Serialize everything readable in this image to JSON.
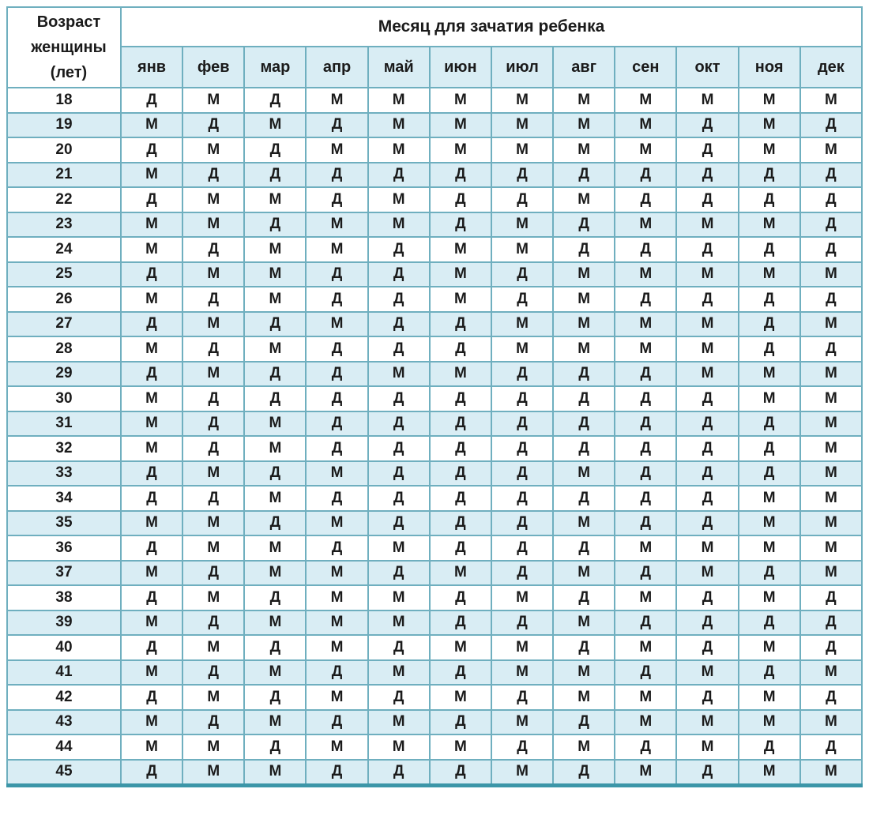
{
  "chart_data": {
    "type": "table",
    "title": "Месяц для зачатия ребенка",
    "age_column_label": "Возраст женщины (лет)",
    "months": [
      "янв",
      "фев",
      "мар",
      "апр",
      "май",
      "июн",
      "июл",
      "авг",
      "сен",
      "окт",
      "ноя",
      "дек"
    ],
    "rows": [
      {
        "age": "18",
        "values": [
          "Д",
          "М",
          "Д",
          "М",
          "М",
          "М",
          "М",
          "М",
          "М",
          "М",
          "М",
          "М"
        ]
      },
      {
        "age": "19",
        "values": [
          "М",
          "Д",
          "М",
          "Д",
          "М",
          "М",
          "М",
          "М",
          "М",
          "Д",
          "М",
          "Д"
        ]
      },
      {
        "age": "20",
        "values": [
          "Д",
          "М",
          "Д",
          "М",
          "М",
          "М",
          "М",
          "М",
          "М",
          "Д",
          "М",
          "М"
        ]
      },
      {
        "age": "21",
        "values": [
          "М",
          "Д",
          "Д",
          "Д",
          "Д",
          "Д",
          "Д",
          "Д",
          "Д",
          "Д",
          "Д",
          "Д"
        ]
      },
      {
        "age": "22",
        "values": [
          "Д",
          "М",
          "М",
          "Д",
          "М",
          "Д",
          "Д",
          "М",
          "Д",
          "Д",
          "Д",
          "Д"
        ]
      },
      {
        "age": "23",
        "values": [
          "М",
          "М",
          "Д",
          "М",
          "М",
          "Д",
          "М",
          "Д",
          "М",
          "М",
          "М",
          "Д"
        ]
      },
      {
        "age": "24",
        "values": [
          "М",
          "Д",
          "М",
          "М",
          "Д",
          "М",
          "М",
          "Д",
          "Д",
          "Д",
          "Д",
          "Д"
        ]
      },
      {
        "age": "25",
        "values": [
          "Д",
          "М",
          "М",
          "Д",
          "Д",
          "М",
          "Д",
          "М",
          "М",
          "М",
          "М",
          "М"
        ]
      },
      {
        "age": "26",
        "values": [
          "М",
          "Д",
          "М",
          "Д",
          "Д",
          "М",
          "Д",
          "М",
          "Д",
          "Д",
          "Д",
          "Д"
        ]
      },
      {
        "age": "27",
        "values": [
          "Д",
          "М",
          "Д",
          "М",
          "Д",
          "Д",
          "М",
          "М",
          "М",
          "М",
          "Д",
          "М"
        ]
      },
      {
        "age": "28",
        "values": [
          "М",
          "Д",
          "М",
          "Д",
          "Д",
          "Д",
          "М",
          "М",
          "М",
          "М",
          "Д",
          "Д"
        ]
      },
      {
        "age": "29",
        "values": [
          "Д",
          "М",
          "Д",
          "Д",
          "М",
          "М",
          "Д",
          "Д",
          "Д",
          "М",
          "М",
          "М"
        ]
      },
      {
        "age": "30",
        "values": [
          "М",
          "Д",
          "Д",
          "Д",
          "Д",
          "Д",
          "Д",
          "Д",
          "Д",
          "Д",
          "М",
          "М"
        ]
      },
      {
        "age": "31",
        "values": [
          "М",
          "Д",
          "М",
          "Д",
          "Д",
          "Д",
          "Д",
          "Д",
          "Д",
          "Д",
          "Д",
          "М"
        ]
      },
      {
        "age": "32",
        "values": [
          "М",
          "Д",
          "М",
          "Д",
          "Д",
          "Д",
          "Д",
          "Д",
          "Д",
          "Д",
          "Д",
          "М"
        ]
      },
      {
        "age": "33",
        "values": [
          "Д",
          "М",
          "Д",
          "М",
          "Д",
          "Д",
          "Д",
          "М",
          "Д",
          "Д",
          "Д",
          "М"
        ]
      },
      {
        "age": "34",
        "values": [
          "Д",
          "Д",
          "М",
          "Д",
          "Д",
          "Д",
          "Д",
          "Д",
          "Д",
          "Д",
          "М",
          "М"
        ]
      },
      {
        "age": "35",
        "values": [
          "М",
          "М",
          "Д",
          "М",
          "Д",
          "Д",
          "Д",
          "М",
          "Д",
          "Д",
          "М",
          "М"
        ]
      },
      {
        "age": "36",
        "values": [
          "Д",
          "М",
          "М",
          "Д",
          "М",
          "Д",
          "Д",
          "Д",
          "М",
          "М",
          "М",
          "М"
        ]
      },
      {
        "age": "37",
        "values": [
          "М",
          "Д",
          "М",
          "М",
          "Д",
          "М",
          "Д",
          "М",
          "Д",
          "М",
          "Д",
          "М"
        ]
      },
      {
        "age": "38",
        "values": [
          "Д",
          "М",
          "Д",
          "М",
          "М",
          "Д",
          "М",
          "Д",
          "М",
          "Д",
          "М",
          "Д"
        ]
      },
      {
        "age": "39",
        "values": [
          "М",
          "Д",
          "М",
          "М",
          "М",
          "Д",
          "Д",
          "М",
          "Д",
          "Д",
          "Д",
          "Д"
        ]
      },
      {
        "age": "40",
        "values": [
          "Д",
          "М",
          "Д",
          "М",
          "Д",
          "М",
          "М",
          "Д",
          "М",
          "Д",
          "М",
          "Д"
        ]
      },
      {
        "age": "41",
        "values": [
          "М",
          "Д",
          "М",
          "Д",
          "М",
          "Д",
          "М",
          "М",
          "Д",
          "М",
          "Д",
          "М"
        ]
      },
      {
        "age": "42",
        "values": [
          "Д",
          "М",
          "Д",
          "М",
          "Д",
          "М",
          "Д",
          "М",
          "М",
          "Д",
          "М",
          "Д"
        ]
      },
      {
        "age": "43",
        "values": [
          "М",
          "Д",
          "М",
          "Д",
          "М",
          "Д",
          "М",
          "Д",
          "М",
          "М",
          "М",
          "М"
        ]
      },
      {
        "age": "44",
        "values": [
          "М",
          "М",
          "Д",
          "М",
          "М",
          "М",
          "Д",
          "М",
          "Д",
          "М",
          "Д",
          "Д"
        ]
      },
      {
        "age": "45",
        "values": [
          "Д",
          "М",
          "М",
          "Д",
          "Д",
          "Д",
          "М",
          "Д",
          "М",
          "Д",
          "М",
          "М"
        ]
      }
    ]
  },
  "colors": {
    "row_stripe": "#d9edf4",
    "grid_border": "#6fafbf",
    "accent_line": "#3c96a8",
    "text": "#1b1b1b"
  }
}
